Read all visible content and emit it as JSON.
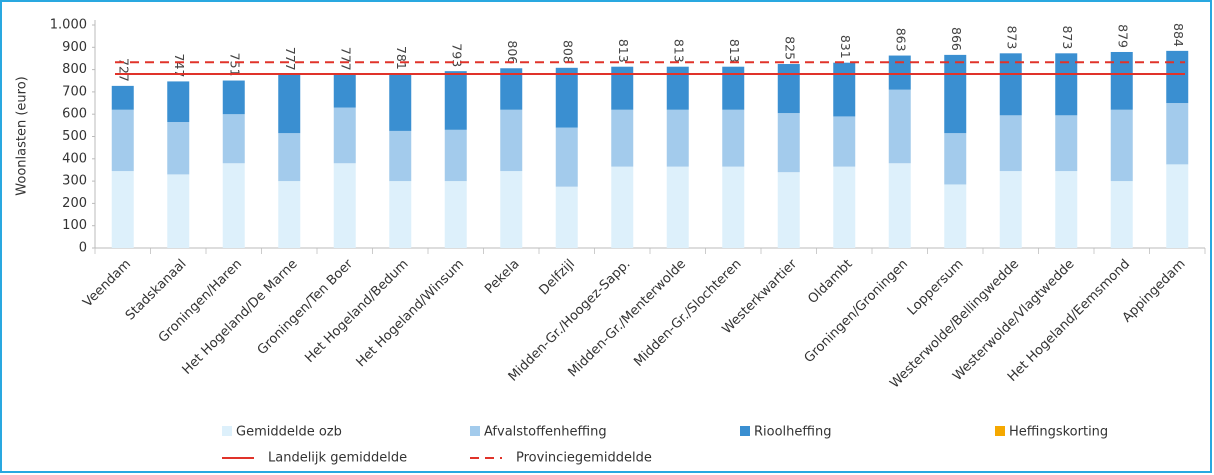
{
  "chart_data": {
    "type": "stacked-bar",
    "y_label": "Woonlasten (euro)",
    "categories": [
      "Veendam",
      "Stadskanaal",
      "Groningen/Haren",
      "Het Hogeland/De Marne",
      "Groningen/Ten Boer",
      "Het Hogeland/Bedum",
      "Het Hogeland/Winsum",
      "Pekela",
      "Delfzijl",
      "Midden-Gr./Hoogez-Sapp.",
      "Midden-Gr./Menterwolde",
      "Midden-Gr./Slochteren",
      "Westerkwartier",
      "Oldambt",
      "Groningen/Groningen",
      "Loppersum",
      "Westerwolde/Bellingwedde",
      "Westerwolde/Vlagtwedde",
      "Het Hogeland/Eemsmond",
      "Appingedam"
    ],
    "series": [
      {
        "name": "Gemiddelde ozb",
        "color": "#ddf0fb",
        "values": [
          345,
          330,
          380,
          300,
          380,
          300,
          300,
          345,
          275,
          365,
          365,
          365,
          340,
          365,
          380,
          285,
          345,
          345,
          300,
          375
        ]
      },
      {
        "name": "Afvalstoffenheffing",
        "color": "#a3cbec",
        "values": [
          275,
          235,
          220,
          215,
          250,
          225,
          230,
          275,
          265,
          255,
          255,
          255,
          265,
          225,
          330,
          230,
          250,
          250,
          320,
          275
        ]
      },
      {
        "name": "Rioolheffing",
        "color": "#3a8fd1",
        "values": [
          107,
          182,
          151,
          262,
          147,
          256,
          263,
          186,
          268,
          193,
          193,
          193,
          220,
          241,
          153,
          351,
          278,
          278,
          259,
          234
        ]
      },
      {
        "name": "Heffingskorting",
        "color": "#f5a800",
        "values": [
          0,
          0,
          0,
          0,
          0,
          0,
          0,
          0,
          0,
          0,
          0,
          0,
          0,
          0,
          0,
          0,
          0,
          0,
          0,
          0
        ]
      }
    ],
    "totals": [
      727,
      747,
      751,
      777,
      777,
      781,
      793,
      806,
      808,
      813,
      813,
      813,
      825,
      831,
      863,
      866,
      873,
      873,
      879,
      884
    ],
    "reference_lines": [
      {
        "name": "Landelijk gemiddelde",
        "value": 780,
        "color": "#e0332a",
        "dashed": false
      },
      {
        "name": "Provinciegemiddelde",
        "value": 833,
        "color": "#e0332a",
        "dashed": true
      }
    ],
    "ylim": [
      0,
      1000
    ],
    "yticks": [
      0,
      100,
      200,
      300,
      400,
      500,
      600,
      700,
      800,
      900,
      {
        "value": 1000,
        "label": "1.000"
      }
    ],
    "grid": false
  }
}
